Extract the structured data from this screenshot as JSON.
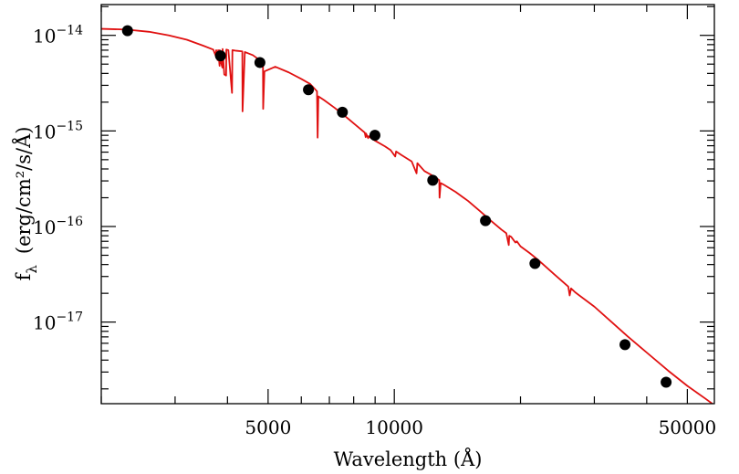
{
  "chart_data": {
    "type": "line",
    "xlabel": "Wavelength (Å)",
    "ylabel_main": "f",
    "ylabel_sub": "λ",
    "ylabel_units": "(erg/cm²/s/Å)",
    "x_scale": "log",
    "y_scale": "log",
    "xlim": [
      2000,
      58000
    ],
    "ylim": [
      1.4e-18,
      2.1e-14
    ],
    "x_tick_labels": [
      {
        "value": 5000,
        "label": "5000"
      },
      {
        "value": 10000,
        "label": "10000"
      },
      {
        "value": 50000,
        "label": "50000"
      }
    ],
    "y_tick_labels": [
      {
        "value": 1e-14,
        "base": "10",
        "exp": "−14"
      },
      {
        "value": 1e-15,
        "base": "10",
        "exp": "−15"
      },
      {
        "value": 1e-16,
        "base": "10",
        "exp": "−16"
      },
      {
        "value": 1e-17,
        "base": "10",
        "exp": "−17"
      }
    ],
    "grid": false,
    "series": [
      {
        "kind": "model-spectrum",
        "color": "#e01010",
        "x": [
          2000,
          2300,
          2600,
          2900,
          3200,
          3500,
          3700,
          3750,
          3760,
          3790,
          3800,
          3830,
          3835,
          3860,
          3890,
          3895,
          3930,
          3970,
          3975,
          4020,
          4101,
          4110,
          4200,
          4340,
          4345,
          4400,
          4600,
          4861,
          4866,
          4900,
          5200,
          5600,
          6000,
          6300,
          6540,
          6563,
          6590,
          6800,
          7200,
          7600,
          8000,
          8300,
          8500,
          8545,
          8560,
          8662,
          8680,
          9000,
          9500,
          9800,
          10050,
          10100,
          10400,
          11000,
          11300,
          11350,
          11800,
          12500,
          12800,
          12820,
          12900,
          13100,
          14000,
          15000,
          16000,
          17000,
          18000,
          18500,
          18750,
          18800,
          19000,
          19450,
          19600,
          20000,
          21000,
          22000,
          24000,
          26000,
          26200,
          26400,
          27000,
          30000,
          33000,
          36000,
          40000,
          45000,
          50000,
          55000,
          58000
        ],
        "y": [
          1.17e-14,
          1.15e-14,
          1.09e-14,
          1e-14,
          9e-15,
          7.8e-15,
          7.1e-15,
          6.1e-15,
          7e-15,
          5.5e-15,
          7e-15,
          4.8e-15,
          7e-15,
          5.2e-15,
          4.6e-15,
          7.2e-15,
          3.9e-15,
          3.8e-15,
          7.1e-15,
          7e-15,
          2.5e-15,
          7e-15,
          6.9e-15,
          6.8e-15,
          1.6e-15,
          6.7e-15,
          6.2e-15,
          5.2e-15,
          1.7e-15,
          4.2e-15,
          4.7e-15,
          4.1e-15,
          3.5e-15,
          3.1e-15,
          2.6e-15,
          8.5e-16,
          2.3e-15,
          2.1e-15,
          1.75e-15,
          1.45e-15,
          1.2e-15,
          1.05e-15,
          9.6e-16,
          8.6e-16,
          9.4e-16,
          8.4e-16,
          8.8e-16,
          7.9e-16,
          6.9e-16,
          6.3e-16,
          5.4e-16,
          6.1e-16,
          5.6e-16,
          4.8e-16,
          3.6e-16,
          4.6e-16,
          3.8e-16,
          3.3e-16,
          3.05e-16,
          2e-16,
          2.85e-16,
          2.75e-16,
          2.3e-16,
          1.85e-16,
          1.45e-16,
          1.15e-16,
          9.3e-17,
          8.5e-17,
          6.4e-17,
          8e-17,
          7.8e-17,
          6.8e-17,
          7e-17,
          6.2e-17,
          5.3e-17,
          4.5e-17,
          3.2e-17,
          2.35e-17,
          1.9e-17,
          2.25e-17,
          2.05e-17,
          1.45e-17,
          1e-17,
          7.1e-18,
          4.8e-18,
          3.1e-18,
          2.15e-18,
          1.6e-18,
          1.35e-18
        ]
      },
      {
        "kind": "photometry-points",
        "color": "#000000",
        "x": [
          2310,
          3850,
          4780,
          6240,
          7520,
          8990,
          12350,
          16500,
          21650,
          35500,
          44500
        ],
        "y": [
          1.12e-14,
          6.1e-15,
          5.2e-15,
          2.7e-15,
          1.57e-15,
          9e-16,
          3.05e-16,
          1.15e-16,
          4.1e-17,
          5.8e-18,
          2.35e-18
        ]
      }
    ]
  }
}
